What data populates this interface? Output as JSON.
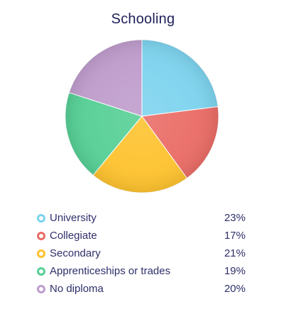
{
  "chart_data": {
    "type": "pie",
    "title": "Schooling",
    "slices": [
      {
        "label": "University",
        "value": 23,
        "display": "23%",
        "color": "#7dd3ee"
      },
      {
        "label": "Collegiate",
        "value": 17,
        "display": "17%",
        "color": "#ea6c66"
      },
      {
        "label": "Secondary",
        "value": 21,
        "display": "21%",
        "color": "#fdc22e"
      },
      {
        "label": "Apprenticeships or trades",
        "value": 19,
        "display": "19%",
        "color": "#56cf95"
      },
      {
        "label": "No diploma",
        "value": 20,
        "display": "20%",
        "color": "#bf9ccc"
      }
    ],
    "legend_position": "bottom"
  }
}
